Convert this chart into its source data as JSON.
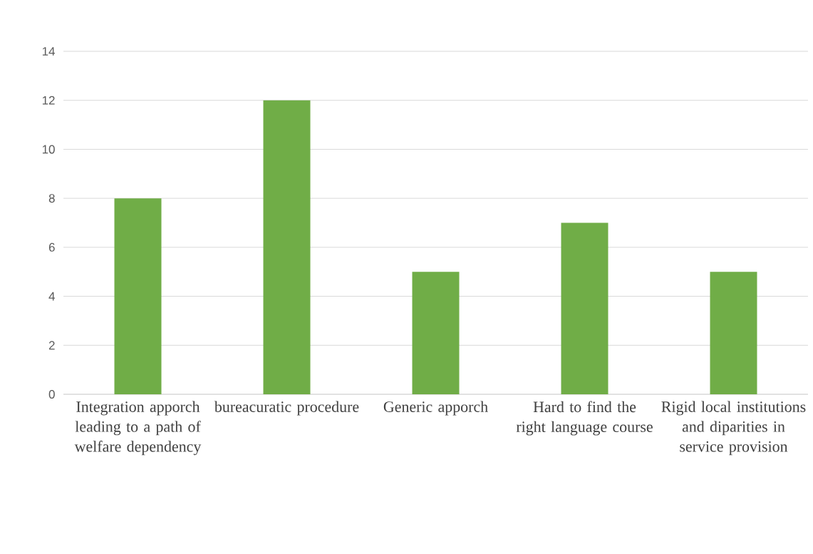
{
  "chart_data": {
    "type": "bar",
    "categories": [
      "Integration apporch leading to a path of welfare dependency",
      "bureacuratic procedure",
      "Generic apporch",
      "Hard to find the right language course",
      "Rigid local institutions and diparities in service provision"
    ],
    "values": [
      8,
      12,
      5,
      7,
      5
    ],
    "color": "#70ad47",
    "ylim": [
      0,
      14
    ],
    "yticks": [
      0,
      2,
      4,
      6,
      8,
      10,
      12,
      14
    ],
    "grid": "y"
  }
}
